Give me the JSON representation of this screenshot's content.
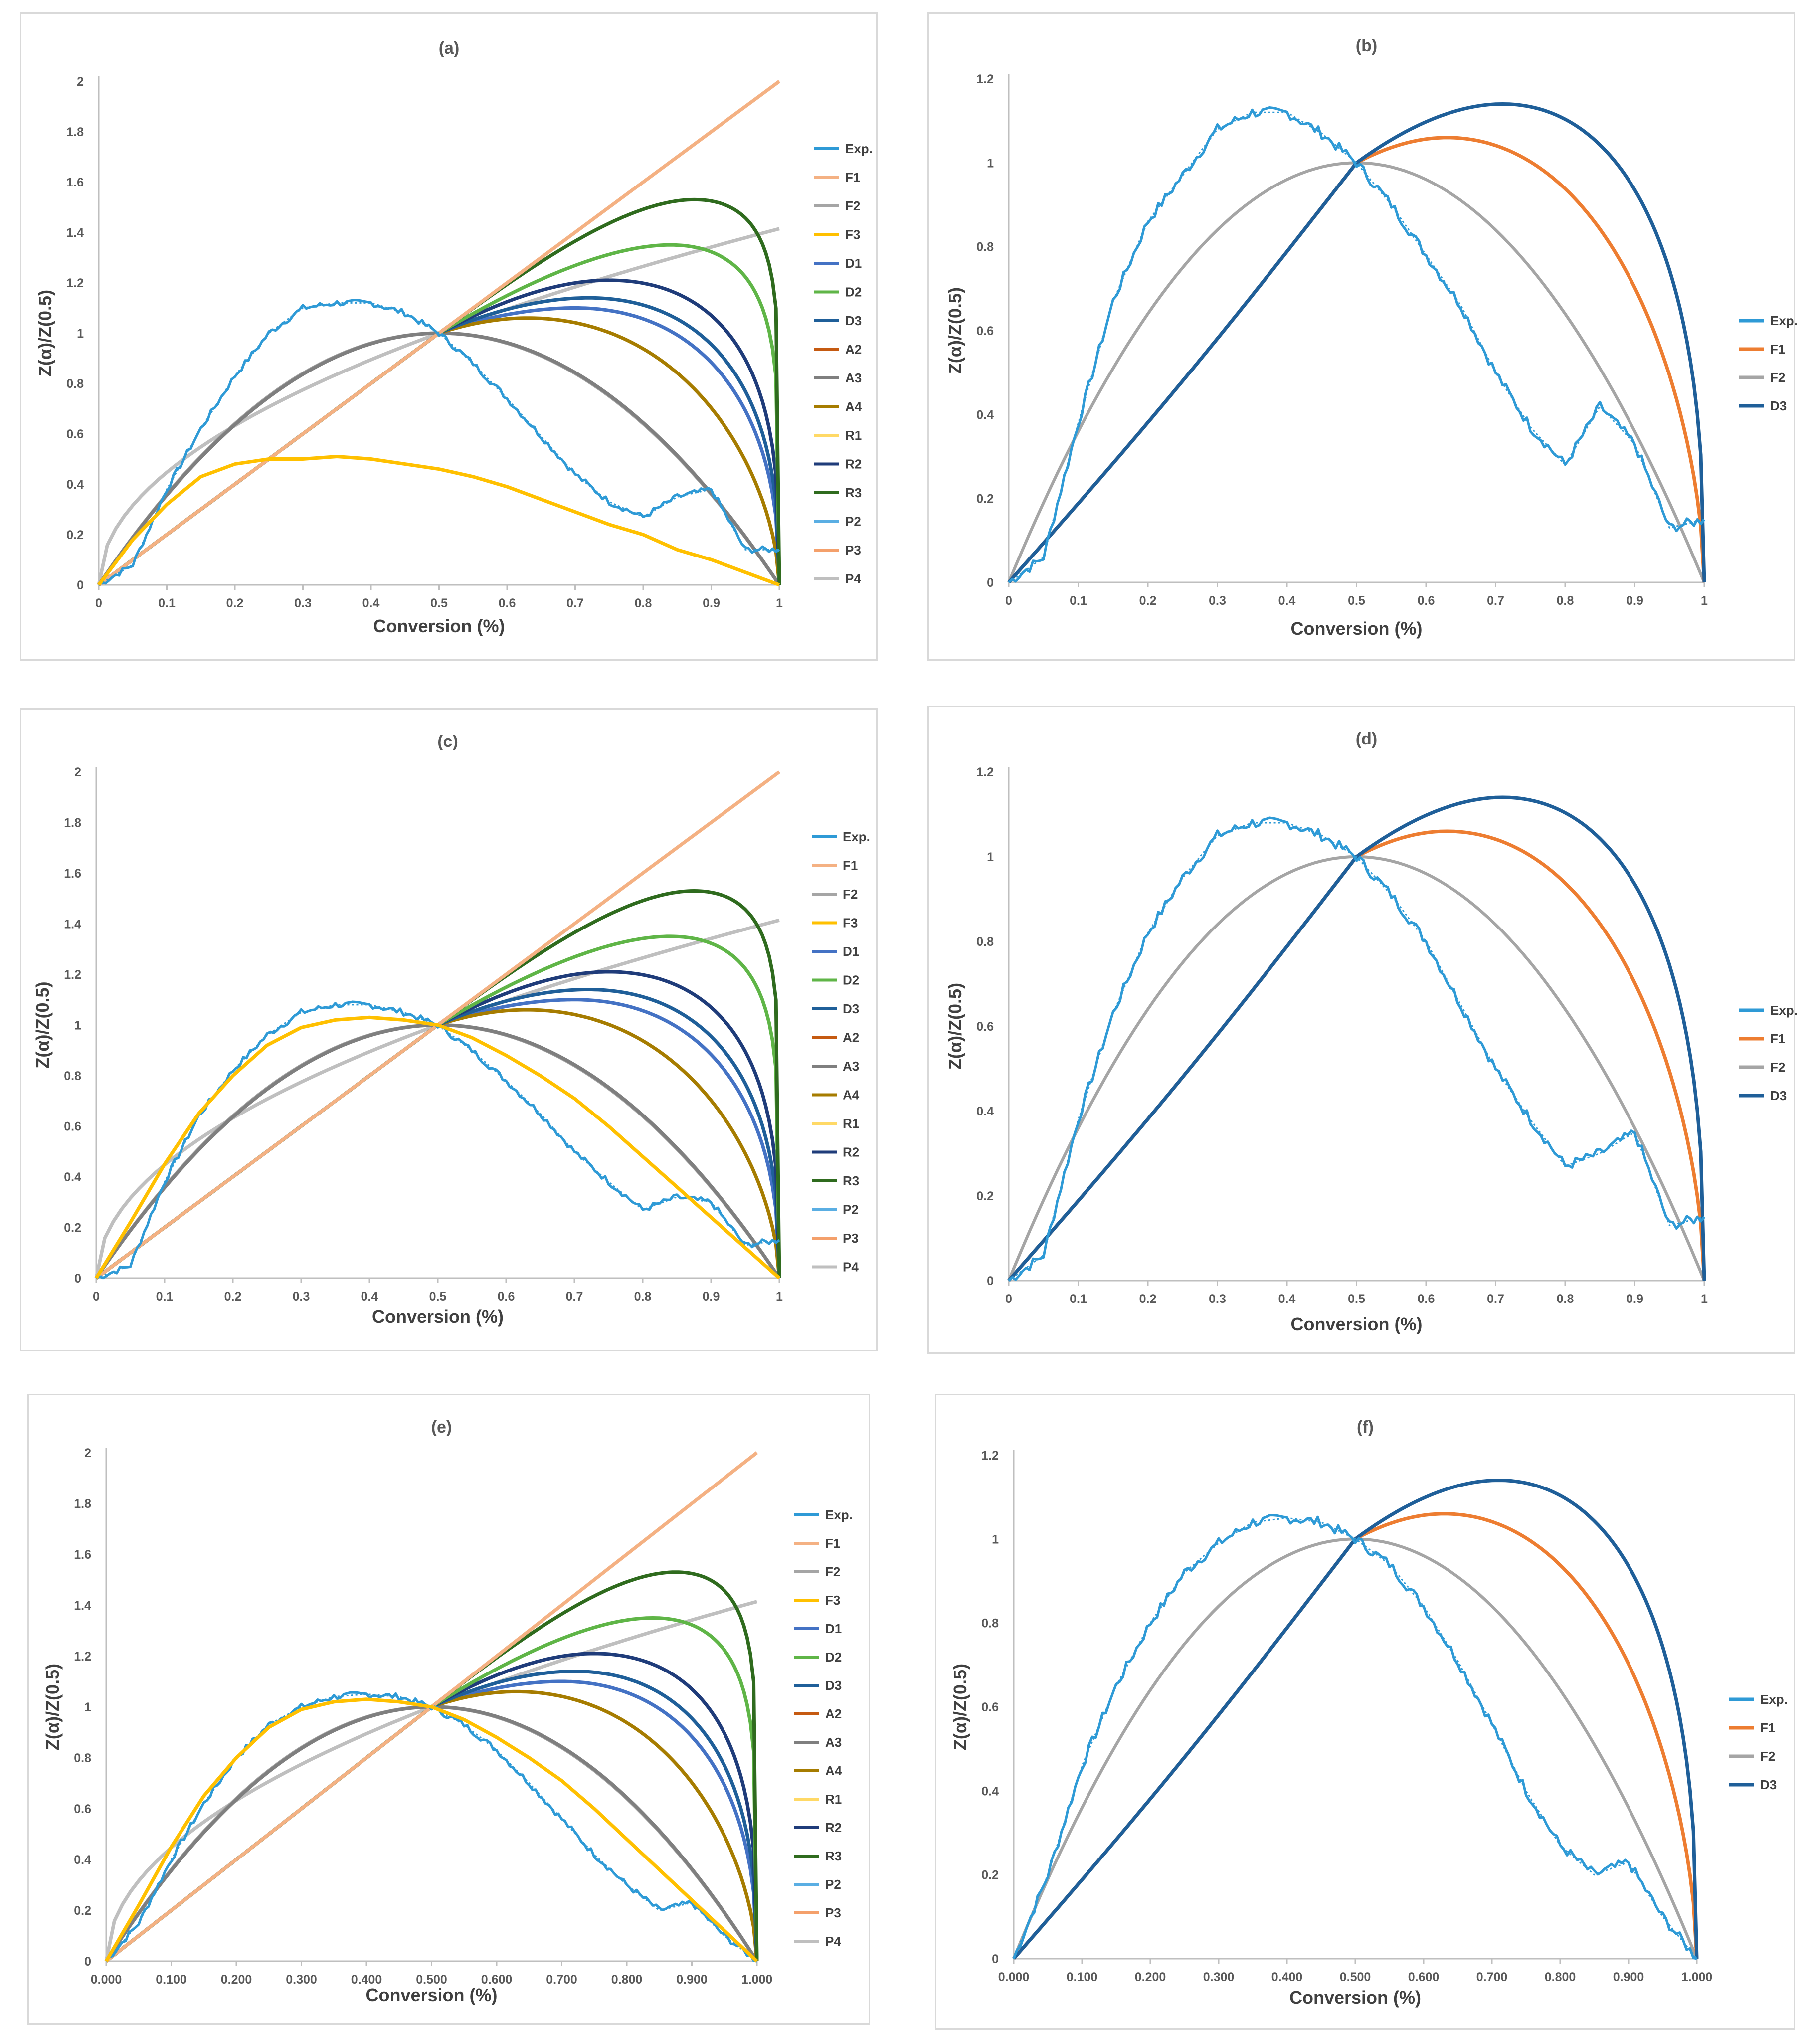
{
  "panels": [
    {
      "id": "a",
      "title": "(a)",
      "xlabel": "Conversion (%)",
      "ylabel": "Z(α)/Z(0.5)",
      "xlim": [
        0,
        1
      ],
      "ylim": [
        0,
        2
      ],
      "xticks": [
        "0",
        "0.1",
        "0.2",
        "0.3",
        "0.4",
        "0.5",
        "0.6",
        "0.7",
        "0.8",
        "0.9",
        "1"
      ],
      "yticks": [
        "0",
        "0.2",
        "0.4",
        "0.6",
        "0.8",
        "1",
        "1.2",
        "1.4",
        "1.6",
        "1.8",
        "2"
      ],
      "legend": [
        "Exp.",
        "F1",
        "F2",
        "F3",
        "D1",
        "D2",
        "D3",
        "A2",
        "A3",
        "A4",
        "R1",
        "R2",
        "R3",
        "P2",
        "P3",
        "P4"
      ]
    },
    {
      "id": "b",
      "title": "(b)",
      "xlabel": "Conversion (%)",
      "ylabel": "Z(α)/Z(0.5)",
      "xlim": [
        0,
        1
      ],
      "ylim": [
        0,
        1.2
      ],
      "xticks": [
        "0",
        "0.1",
        "0.2",
        "0.3",
        "0.4",
        "0.5",
        "0.6",
        "0.7",
        "0.8",
        "0.9",
        "1"
      ],
      "yticks": [
        "0",
        "0.2",
        "0.4",
        "0.6",
        "0.8",
        "1",
        "1.2"
      ],
      "legend": [
        "Exp.",
        "F1",
        "F2",
        "D3"
      ]
    },
    {
      "id": "c",
      "title": "(c)",
      "xlabel": "Conversion (%)",
      "ylabel": "Z(α)/Z(0.5)",
      "xlim": [
        0,
        1
      ],
      "ylim": [
        0,
        2
      ],
      "xticks": [
        "0",
        "0.1",
        "0.2",
        "0.3",
        "0.4",
        "0.5",
        "0.6",
        "0.7",
        "0.8",
        "0.9",
        "1"
      ],
      "yticks": [
        "0",
        "0.2",
        "0.4",
        "0.6",
        "0.8",
        "1",
        "1.2",
        "1.4",
        "1.6",
        "1.8",
        "2"
      ],
      "legend": [
        "Exp.",
        "F1",
        "F2",
        "F3",
        "D1",
        "D2",
        "D3",
        "A2",
        "A3",
        "A4",
        "R1",
        "R2",
        "R3",
        "P2",
        "P3",
        "P4"
      ]
    },
    {
      "id": "d",
      "title": "(d)",
      "xlabel": "Conversion (%)",
      "ylabel": "Z(α)/Z(0.5)",
      "xlim": [
        0,
        1
      ],
      "ylim": [
        0,
        1.2
      ],
      "xticks": [
        "0",
        "0.1",
        "0.2",
        "0.3",
        "0.4",
        "0.5",
        "0.6",
        "0.7",
        "0.8",
        "0.9",
        "1"
      ],
      "yticks": [
        "0",
        "0.2",
        "0.4",
        "0.6",
        "0.8",
        "1",
        "1.2"
      ],
      "legend": [
        "Exp.",
        "F1",
        "F2",
        "D3"
      ]
    },
    {
      "id": "e",
      "title": "(e)",
      "xlabel": "Conversion (%)",
      "ylabel": "Z(α)/Z(0.5)",
      "xlim": [
        0,
        1
      ],
      "ylim": [
        0,
        2
      ],
      "xticks": [
        "0.000",
        "0.100",
        "0.200",
        "0.300",
        "0.400",
        "0.500",
        "0.600",
        "0.700",
        "0.800",
        "0.900",
        "1.000"
      ],
      "yticks": [
        "0",
        "0.2",
        "0.4",
        "0.6",
        "0.8",
        "1",
        "1.2",
        "1.4",
        "1.6",
        "1.8",
        "2"
      ],
      "legend": [
        "Exp.",
        "F1",
        "F2",
        "F3",
        "D1",
        "D2",
        "D3",
        "A2",
        "A3",
        "A4",
        "R1",
        "R2",
        "R3",
        "P2",
        "P3",
        "P4"
      ]
    },
    {
      "id": "f",
      "title": "(f)",
      "xlabel": "Conversion (%)",
      "ylabel": "Z(α)/Z(0.5)",
      "xlim": [
        0,
        1
      ],
      "ylim": [
        0,
        1.2
      ],
      "xticks": [
        "0.000",
        "0.100",
        "0.200",
        "0.300",
        "0.400",
        "0.500",
        "0.600",
        "0.700",
        "0.800",
        "0.900",
        "1.000"
      ],
      "yticks": [
        "0",
        "0.2",
        "0.4",
        "0.6",
        "0.8",
        "1",
        "1.2"
      ],
      "legend": [
        "Exp.",
        "F1",
        "F2",
        "D3"
      ]
    }
  ],
  "series_colors": {
    "Exp.": "#2e9ad6",
    "F1": "#f4b183",
    "F2": "#a5a5a5",
    "F3": "#ffc000",
    "D1": "#4472c4",
    "D2": "#5fb547",
    "D3": "#1f5f99",
    "A2": "#c55a11",
    "A3": "#7f7f7f",
    "A4": "#a67c00",
    "R1": "#ffd966",
    "R2": "#1f3c7a",
    "R3": "#2f6b1e",
    "P2": "#5aaee3",
    "P3": "#f4a06b",
    "P4": "#bfbfbf",
    "F1_small": "#ed7d31",
    "D3_small": "#1f5f99"
  },
  "chart_data": [
    {
      "type": "line",
      "panel": "a",
      "title": "(a)",
      "xlabel": "Conversion (%)",
      "ylabel": "Z(α)/Z(0.5)",
      "x": [
        0,
        0.05,
        0.1,
        0.15,
        0.2,
        0.25,
        0.3,
        0.35,
        0.4,
        0.45,
        0.5,
        0.55,
        0.6,
        0.65,
        0.7,
        0.75,
        0.8,
        0.85,
        0.9,
        0.95,
        1.0
      ],
      "series": [
        {
          "name": "Exp.",
          "values": [
            0,
            0.08,
            0.38,
            0.62,
            0.83,
            1.0,
            1.1,
            1.12,
            1.12,
            1.08,
            1.0,
            0.88,
            0.74,
            0.59,
            0.44,
            0.33,
            0.27,
            0.35,
            0.38,
            0.14,
            0.14
          ]
        },
        {
          "name": "F1",
          "values": [
            0,
            0.1,
            0.2,
            0.3,
            0.4,
            0.5,
            0.6,
            0.7,
            0.8,
            0.9,
            1.0,
            1.1,
            1.2,
            1.3,
            1.4,
            1.5,
            1.6,
            1.7,
            1.8,
            1.9,
            2.0
          ]
        },
        {
          "name": "F2",
          "values": [
            0,
            0.19,
            0.36,
            0.51,
            0.64,
            0.75,
            0.84,
            0.91,
            0.96,
            0.99,
            1.0,
            0.99,
            0.96,
            0.91,
            0.84,
            0.75,
            0.64,
            0.51,
            0.36,
            0.19,
            0
          ]
        },
        {
          "name": "F3",
          "values": [
            0,
            0.18,
            0.32,
            0.43,
            0.48,
            0.5,
            0.5,
            0.51,
            0.5,
            0.48,
            0.46,
            0.43,
            0.39,
            0.34,
            0.29,
            0.24,
            0.2,
            0.14,
            0.1,
            0.05,
            0
          ]
        },
        {
          "name": "D3",
          "values": [
            0,
            0.09,
            0.18,
            0.28,
            0.37,
            0.46,
            0.56,
            0.66,
            0.77,
            0.88,
            1.0,
            1.1,
            1.14,
            1.17,
            1.18,
            1.16,
            1.1,
            1.0,
            0.86,
            0.6,
            0
          ]
        },
        {
          "name": "A4",
          "values": [
            0,
            0.12,
            0.22,
            0.32,
            0.41,
            0.5,
            0.59,
            0.69,
            0.79,
            0.89,
            1.0,
            1.04,
            1.06,
            1.06,
            1.05,
            0.99,
            0.9,
            0.77,
            0.59,
            0.35,
            0
          ]
        },
        {
          "name": "R3",
          "values": [
            0,
            0.1,
            0.2,
            0.3,
            0.4,
            0.5,
            0.6,
            0.7,
            0.8,
            0.9,
            1.0,
            1.11,
            1.22,
            1.32,
            1.41,
            1.48,
            1.52,
            1.52,
            1.45,
            1.15,
            0
          ]
        },
        {
          "name": "P4",
          "values": [
            0,
            0.34,
            0.45,
            0.54,
            0.63,
            0.7,
            0.78,
            0.84,
            0.9,
            0.95,
            1.0,
            1.05,
            1.1,
            1.14,
            1.18,
            1.22,
            1.26,
            1.3,
            1.34,
            1.38,
            1.41
          ]
        }
      ]
    },
    {
      "type": "line",
      "panel": "b",
      "title": "(b)",
      "xlabel": "Conversion (%)",
      "ylabel": "Z(α)/Z(0.5)",
      "x": [
        0,
        0.05,
        0.1,
        0.15,
        0.2,
        0.25,
        0.3,
        0.35,
        0.4,
        0.45,
        0.5,
        0.55,
        0.6,
        0.65,
        0.7,
        0.75,
        0.8,
        0.85,
        0.9,
        0.95,
        1.0
      ],
      "series": [
        {
          "name": "Exp.",
          "values": [
            0,
            0.06,
            0.38,
            0.67,
            0.86,
            0.97,
            1.08,
            1.12,
            1.12,
            1.07,
            1.0,
            0.9,
            0.78,
            0.66,
            0.5,
            0.37,
            0.28,
            0.42,
            0.33,
            0.13,
            0.15
          ]
        },
        {
          "name": "F1",
          "values": [
            0,
            0.1,
            0.2,
            0.3,
            0.4,
            0.5,
            0.6,
            0.7,
            0.8,
            0.9,
            1.0,
            1.04,
            1.06,
            1.05,
            1.02,
            0.96,
            0.88,
            0.76,
            0.59,
            0.36,
            0
          ]
        },
        {
          "name": "F2",
          "values": [
            0,
            0.19,
            0.36,
            0.51,
            0.64,
            0.75,
            0.84,
            0.91,
            0.96,
            0.99,
            1.0,
            0.99,
            0.96,
            0.91,
            0.84,
            0.75,
            0.64,
            0.51,
            0.36,
            0.19,
            0
          ]
        },
        {
          "name": "D3",
          "values": [
            0,
            0.09,
            0.18,
            0.28,
            0.37,
            0.46,
            0.56,
            0.66,
            0.77,
            0.88,
            1.0,
            1.08,
            1.12,
            1.14,
            1.14,
            1.12,
            1.06,
            0.95,
            0.79,
            0.53,
            0
          ]
        }
      ]
    },
    {
      "type": "line",
      "panel": "c",
      "title": "(c)",
      "xlabel": "Conversion (%)",
      "ylabel": "Z(α)/Z(0.5)",
      "x": [
        0,
        0.05,
        0.1,
        0.15,
        0.2,
        0.25,
        0.3,
        0.35,
        0.4,
        0.45,
        0.5,
        0.55,
        0.6,
        0.65,
        0.7,
        0.75,
        0.8,
        0.85,
        0.9,
        0.95,
        1.0
      ],
      "series": [
        {
          "name": "Exp.",
          "values": [
            0,
            0.05,
            0.38,
            0.64,
            0.82,
            0.96,
            1.05,
            1.08,
            1.08,
            1.05,
            1.0,
            0.9,
            0.78,
            0.65,
            0.5,
            0.38,
            0.27,
            0.32,
            0.3,
            0.13,
            0.15
          ]
        },
        {
          "name": "F3",
          "values": [
            0,
            0.22,
            0.45,
            0.65,
            0.8,
            0.92,
            0.99,
            1.02,
            1.03,
            1.02,
            1.0,
            0.95,
            0.88,
            0.8,
            0.71,
            0.6,
            0.48,
            0.36,
            0.24,
            0.12,
            0
          ]
        }
      ]
    },
    {
      "type": "line",
      "panel": "d",
      "title": "(d)",
      "xlabel": "Conversion (%)",
      "ylabel": "Z(α)/Z(0.5)",
      "x": [
        0,
        0.05,
        0.1,
        0.15,
        0.2,
        0.25,
        0.3,
        0.35,
        0.4,
        0.45,
        0.5,
        0.55,
        0.6,
        0.65,
        0.7,
        0.75,
        0.8,
        0.85,
        0.9,
        0.95,
        1.0
      ],
      "series": [
        {
          "name": "Exp.",
          "values": [
            0,
            0.06,
            0.38,
            0.63,
            0.82,
            0.95,
            1.05,
            1.08,
            1.08,
            1.05,
            1.0,
            0.91,
            0.8,
            0.65,
            0.5,
            0.38,
            0.27,
            0.3,
            0.35,
            0.13,
            0.15
          ]
        },
        {
          "name": "F1",
          "values": [
            0,
            0.1,
            0.2,
            0.3,
            0.4,
            0.5,
            0.6,
            0.7,
            0.8,
            0.9,
            1.0,
            1.04,
            1.06,
            1.05,
            1.02,
            0.96,
            0.88,
            0.76,
            0.59,
            0.36,
            0
          ]
        },
        {
          "name": "F2",
          "values": [
            0,
            0.19,
            0.36,
            0.51,
            0.64,
            0.75,
            0.84,
            0.91,
            0.96,
            0.99,
            1.0,
            0.99,
            0.96,
            0.91,
            0.84,
            0.75,
            0.64,
            0.51,
            0.36,
            0.19,
            0
          ]
        },
        {
          "name": "D3",
          "values": [
            0,
            0.09,
            0.18,
            0.28,
            0.37,
            0.46,
            0.56,
            0.66,
            0.77,
            0.88,
            1.0,
            1.08,
            1.12,
            1.14,
            1.14,
            1.12,
            1.06,
            0.95,
            0.79,
            0.53,
            0
          ]
        }
      ]
    },
    {
      "type": "line",
      "panel": "e",
      "title": "(e)",
      "xlabel": "Conversion (%)",
      "ylabel": "Z(α)/Z(0.5)",
      "x": [
        0,
        0.05,
        0.1,
        0.15,
        0.2,
        0.25,
        0.3,
        0.35,
        0.4,
        0.45,
        0.5,
        0.55,
        0.6,
        0.65,
        0.7,
        0.75,
        0.8,
        0.85,
        0.9,
        0.95,
        1.0
      ],
      "series": [
        {
          "name": "Exp.",
          "values": [
            0,
            0.15,
            0.4,
            0.62,
            0.8,
            0.93,
            1.0,
            1.04,
            1.05,
            1.04,
            1.0,
            0.93,
            0.83,
            0.7,
            0.56,
            0.42,
            0.3,
            0.2,
            0.23,
            0.1,
            0
          ]
        },
        {
          "name": "F3",
          "values": [
            0,
            0.22,
            0.45,
            0.65,
            0.8,
            0.92,
            0.99,
            1.02,
            1.03,
            1.02,
            1.0,
            0.95,
            0.88,
            0.8,
            0.71,
            0.6,
            0.48,
            0.36,
            0.24,
            0.12,
            0
          ]
        }
      ]
    },
    {
      "type": "line",
      "panel": "f",
      "title": "(f)",
      "xlabel": "Conversion (%)",
      "ylabel": "Z(α)/Z(0.5)",
      "x": [
        0,
        0.05,
        0.1,
        0.15,
        0.2,
        0.25,
        0.3,
        0.35,
        0.4,
        0.45,
        0.5,
        0.55,
        0.6,
        0.65,
        0.7,
        0.75,
        0.8,
        0.85,
        0.9,
        0.95,
        1.0
      ],
      "series": [
        {
          "name": "Exp.",
          "values": [
            0,
            0.2,
            0.46,
            0.65,
            0.8,
            0.92,
            0.99,
            1.04,
            1.05,
            1.04,
            1.0,
            0.94,
            0.84,
            0.71,
            0.56,
            0.4,
            0.27,
            0.2,
            0.23,
            0.1,
            0
          ]
        },
        {
          "name": "F1",
          "values": [
            0,
            0.1,
            0.2,
            0.3,
            0.4,
            0.5,
            0.6,
            0.7,
            0.8,
            0.9,
            1.0,
            1.04,
            1.06,
            1.05,
            1.02,
            0.96,
            0.88,
            0.76,
            0.59,
            0.36,
            0
          ]
        },
        {
          "name": "F2",
          "values": [
            0,
            0.19,
            0.36,
            0.51,
            0.64,
            0.75,
            0.84,
            0.91,
            0.96,
            0.99,
            1.0,
            0.99,
            0.96,
            0.91,
            0.84,
            0.75,
            0.64,
            0.51,
            0.36,
            0.19,
            0
          ]
        },
        {
          "name": "D3",
          "values": [
            0,
            0.09,
            0.18,
            0.28,
            0.37,
            0.46,
            0.56,
            0.66,
            0.77,
            0.88,
            1.0,
            1.08,
            1.12,
            1.14,
            1.14,
            1.12,
            1.06,
            0.95,
            0.79,
            0.53,
            0
          ]
        }
      ]
    }
  ]
}
